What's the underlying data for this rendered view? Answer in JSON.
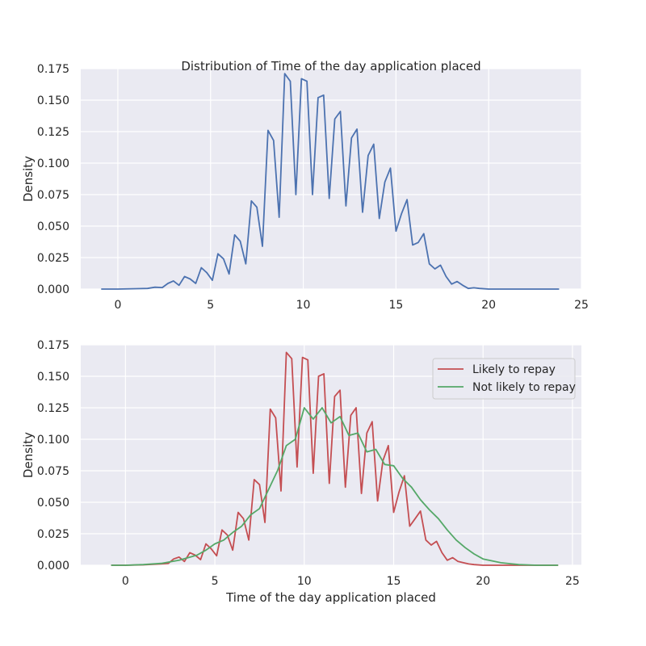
{
  "chart_data": [
    {
      "type": "line",
      "title": "Distribution of Time of the day application placed",
      "xlabel": "",
      "ylabel": "Density",
      "xlim": [
        -2,
        25
      ],
      "ylim": [
        0,
        0.175
      ],
      "xticks": [
        "0",
        "5",
        "10",
        "15",
        "20",
        "25"
      ],
      "yticks": [
        "0.000",
        "0.025",
        "0.050",
        "0.075",
        "0.100",
        "0.125",
        "0.150",
        "0.175"
      ],
      "grid": true,
      "legend": "none",
      "series": [
        {
          "name": "",
          "color": "#4c72b0",
          "x": [
            -0.9,
            0,
            1,
            1.6,
            2,
            2.4,
            2.7,
            3,
            3.3,
            3.6,
            3.9,
            4.2,
            4.5,
            4.8,
            5.1,
            5.4,
            5.7,
            6,
            6.3,
            6.6,
            6.9,
            7.2,
            7.5,
            7.8,
            8.1,
            8.4,
            8.7,
            9,
            9.3,
            9.6,
            9.9,
            10.2,
            10.5,
            10.8,
            11.1,
            11.4,
            11.7,
            12,
            12.3,
            12.6,
            12.9,
            13.2,
            13.5,
            13.8,
            14.1,
            14.4,
            14.7,
            15,
            15.3,
            15.6,
            15.9,
            16.2,
            16.5,
            16.8,
            17.1,
            17.4,
            17.7,
            18,
            18.3,
            18.6,
            18.9,
            19.2,
            19.5,
            20,
            20.5,
            21,
            21.5,
            22,
            23,
            23.8
          ],
          "values": [
            0,
            0,
            0.0003,
            0.0005,
            0.0015,
            0.0012,
            0.0045,
            0.0065,
            0.003,
            0.01,
            0.008,
            0.0045,
            0.017,
            0.013,
            0.007,
            0.028,
            0.024,
            0.012,
            0.043,
            0.038,
            0.02,
            0.07,
            0.065,
            0.034,
            0.126,
            0.118,
            0.057,
            0.171,
            0.165,
            0.075,
            0.167,
            0.165,
            0.075,
            0.152,
            0.154,
            0.072,
            0.135,
            0.141,
            0.066,
            0.12,
            0.127,
            0.061,
            0.106,
            0.115,
            0.056,
            0.085,
            0.096,
            0.046,
            0.06,
            0.071,
            0.035,
            0.037,
            0.044,
            0.02,
            0.016,
            0.019,
            0.01,
            0.004,
            0.006,
            0.003,
            0.0005,
            0.001,
            0.0005,
            0,
            0,
            0,
            0,
            0,
            0,
            0
          ]
        }
      ]
    },
    {
      "type": "line",
      "title": "",
      "xlabel": "Time of the day application placed",
      "ylabel": "Density",
      "xlim": [
        -2.5,
        25.5
      ],
      "ylim": [
        0,
        0.175
      ],
      "xticks": [
        "0",
        "5",
        "10",
        "15",
        "20",
        "25"
      ],
      "yticks": [
        "0.000",
        "0.025",
        "0.050",
        "0.075",
        "0.100",
        "0.125",
        "0.150",
        "0.175"
      ],
      "grid": true,
      "legend": "top-right",
      "series": [
        {
          "name": "Likely to repay",
          "color": "#c44e52",
          "x": [
            -0.8,
            0,
            1,
            2,
            2.4,
            2.7,
            3,
            3.3,
            3.6,
            3.9,
            4.2,
            4.5,
            4.8,
            5.1,
            5.4,
            5.7,
            6,
            6.3,
            6.6,
            6.9,
            7.2,
            7.5,
            7.8,
            8.1,
            8.4,
            8.7,
            9,
            9.3,
            9.6,
            9.9,
            10.2,
            10.5,
            10.8,
            11.1,
            11.4,
            11.7,
            12,
            12.3,
            12.6,
            12.9,
            13.2,
            13.5,
            13.8,
            14.1,
            14.4,
            14.7,
            15,
            15.3,
            15.6,
            15.9,
            16.2,
            16.5,
            16.8,
            17.1,
            17.4,
            17.7,
            18,
            18.3,
            18.6,
            18.9,
            19.2,
            19.5,
            20,
            20.5,
            21,
            21.5,
            22,
            23,
            24.2
          ],
          "values": [
            0,
            0,
            0.0003,
            0.001,
            0.0015,
            0.005,
            0.0065,
            0.003,
            0.01,
            0.008,
            0.0045,
            0.017,
            0.013,
            0.0075,
            0.028,
            0.024,
            0.012,
            0.042,
            0.037,
            0.02,
            0.068,
            0.064,
            0.034,
            0.124,
            0.117,
            0.059,
            0.169,
            0.164,
            0.078,
            0.165,
            0.163,
            0.073,
            0.15,
            0.152,
            0.065,
            0.134,
            0.139,
            0.062,
            0.119,
            0.125,
            0.057,
            0.105,
            0.114,
            0.051,
            0.083,
            0.095,
            0.042,
            0.058,
            0.071,
            0.031,
            0.037,
            0.043,
            0.02,
            0.016,
            0.019,
            0.01,
            0.004,
            0.006,
            0.003,
            0.002,
            0.001,
            0.0005,
            0,
            0,
            0,
            0,
            0,
            0,
            0
          ]
        },
        {
          "name": "Not likely to repay",
          "color": "#55a868",
          "x": [
            -0.8,
            0,
            1,
            2,
            3,
            4,
            4.5,
            5,
            5.5,
            6,
            6.5,
            7,
            7.5,
            8,
            8.5,
            9,
            9.5,
            10,
            10.5,
            11,
            11.5,
            12,
            12.5,
            13,
            13.5,
            14,
            14.5,
            15,
            15.5,
            16,
            16.5,
            17,
            17.5,
            18,
            18.5,
            19,
            19.5,
            20,
            21,
            22,
            23,
            24.2
          ],
          "values": [
            0,
            0,
            0.0005,
            0.0015,
            0.004,
            0.008,
            0.012,
            0.017,
            0.02,
            0.026,
            0.031,
            0.04,
            0.045,
            0.06,
            0.075,
            0.095,
            0.1,
            0.125,
            0.116,
            0.125,
            0.113,
            0.118,
            0.103,
            0.105,
            0.09,
            0.092,
            0.08,
            0.079,
            0.069,
            0.062,
            0.052,
            0.044,
            0.037,
            0.028,
            0.02,
            0.014,
            0.009,
            0.005,
            0.002,
            0.0005,
            0,
            0
          ]
        }
      ]
    }
  ]
}
